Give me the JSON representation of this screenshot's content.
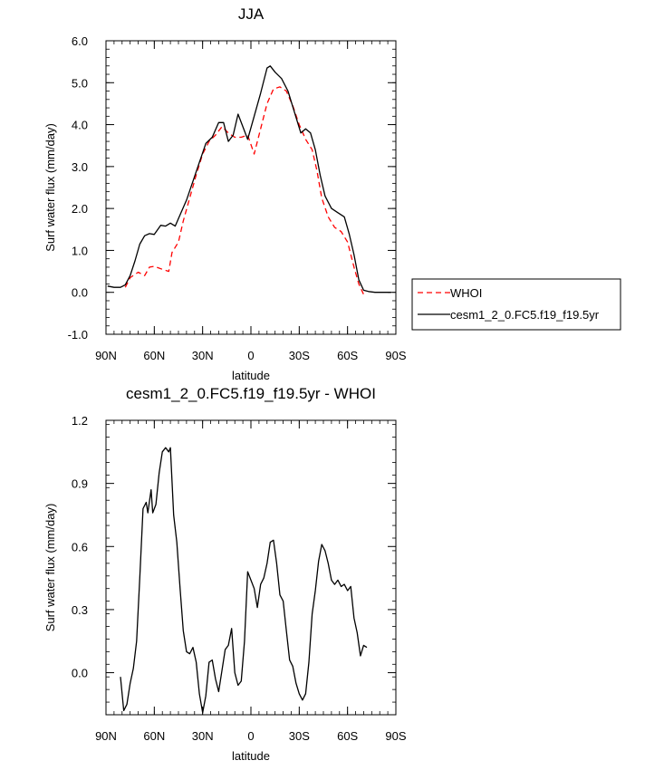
{
  "chart_data": [
    {
      "type": "line",
      "title": "JJA",
      "xlabel": "latitude",
      "ylabel": "Surf water flux (mm/day)",
      "xlim": [
        -90,
        90
      ],
      "ylim": [
        -1.0,
        6.0
      ],
      "xticks": [
        -90,
        -60,
        -30,
        0,
        30,
        60,
        90
      ],
      "xtick_labels": [
        "90N",
        "60N",
        "30N",
        "0",
        "30S",
        "60S",
        "90S"
      ],
      "yticks": [
        -1,
        0,
        1,
        2,
        3,
        4,
        5,
        6
      ],
      "ytick_labels": [
        "-1.0",
        "0.0",
        "1.0",
        "2.0",
        "3.0",
        "4.0",
        "5.0",
        "6.0"
      ],
      "legend": "outside-right",
      "series": [
        {
          "name": "WHOI",
          "color": "#ff0000",
          "dash": "dashed",
          "points": [
            [
              -78,
              0.12
            ],
            [
              -75,
              0.35
            ],
            [
              -70,
              0.48
            ],
            [
              -66,
              0.4
            ],
            [
              -63,
              0.6
            ],
            [
              -60,
              0.62
            ],
            [
              -55,
              0.55
            ],
            [
              -51,
              0.5
            ],
            [
              -49,
              0.95
            ],
            [
              -45,
              1.2
            ],
            [
              -42,
              1.7
            ],
            [
              -38,
              2.25
            ],
            [
              -34,
              2.8
            ],
            [
              -30,
              3.3
            ],
            [
              -26,
              3.6
            ],
            [
              -22,
              3.75
            ],
            [
              -18,
              3.95
            ],
            [
              -14,
              3.8
            ],
            [
              -10,
              3.7
            ],
            [
              -6,
              3.7
            ],
            [
              -2,
              3.75
            ],
            [
              2,
              3.3
            ],
            [
              6,
              3.9
            ],
            [
              10,
              4.5
            ],
            [
              14,
              4.85
            ],
            [
              18,
              4.9
            ],
            [
              22,
              4.8
            ],
            [
              26,
              4.45
            ],
            [
              30,
              4.0
            ],
            [
              34,
              3.65
            ],
            [
              38,
              3.4
            ],
            [
              41,
              2.9
            ],
            [
              44,
              2.25
            ],
            [
              48,
              1.8
            ],
            [
              52,
              1.55
            ],
            [
              56,
              1.45
            ],
            [
              60,
              1.2
            ],
            [
              64,
              0.6
            ],
            [
              67,
              0.2
            ],
            [
              70,
              -0.05
            ]
          ]
        },
        {
          "name": "cesm1_2_0.FC5.f19_f19.5yr",
          "color": "#000000",
          "dash": "solid",
          "points": [
            [
              -89,
              0.15
            ],
            [
              -85,
              0.12
            ],
            [
              -81,
              0.12
            ],
            [
              -78,
              0.18
            ],
            [
              -75,
              0.4
            ],
            [
              -72,
              0.75
            ],
            [
              -69,
              1.15
            ],
            [
              -66,
              1.35
            ],
            [
              -63,
              1.4
            ],
            [
              -60,
              1.38
            ],
            [
              -56,
              1.6
            ],
            [
              -53,
              1.58
            ],
            [
              -50,
              1.65
            ],
            [
              -47,
              1.58
            ],
            [
              -44,
              1.85
            ],
            [
              -40,
              2.2
            ],
            [
              -36,
              2.65
            ],
            [
              -32,
              3.1
            ],
            [
              -28,
              3.55
            ],
            [
              -24,
              3.7
            ],
            [
              -20,
              4.05
            ],
            [
              -17,
              4.05
            ],
            [
              -14,
              3.6
            ],
            [
              -11,
              3.75
            ],
            [
              -8,
              4.25
            ],
            [
              -5,
              3.95
            ],
            [
              -2,
              3.65
            ],
            [
              2,
              4.2
            ],
            [
              6,
              4.75
            ],
            [
              10,
              5.35
            ],
            [
              12,
              5.4
            ],
            [
              15,
              5.25
            ],
            [
              19,
              5.1
            ],
            [
              23,
              4.8
            ],
            [
              27,
              4.3
            ],
            [
              31,
              3.8
            ],
            [
              34,
              3.9
            ],
            [
              37,
              3.8
            ],
            [
              40,
              3.4
            ],
            [
              43,
              2.8
            ],
            [
              46,
              2.3
            ],
            [
              50,
              2.0
            ],
            [
              54,
              1.9
            ],
            [
              58,
              1.8
            ],
            [
              61,
              1.4
            ],
            [
              64,
              0.9
            ],
            [
              67,
              0.3
            ],
            [
              70,
              0.05
            ],
            [
              73,
              0.02
            ],
            [
              77,
              0.0
            ],
            [
              83,
              0.0
            ],
            [
              87,
              0.0
            ]
          ]
        }
      ]
    },
    {
      "type": "line",
      "title": "cesm1_2_0.FC5.f19_f19.5yr - WHOI",
      "xlabel": "latitude",
      "ylabel": "Surf water flux (mm/day)",
      "xlim": [
        -90,
        90
      ],
      "ylim": [
        -0.2,
        1.2
      ],
      "xticks": [
        -90,
        -60,
        -30,
        0,
        30,
        60,
        90
      ],
      "xtick_labels": [
        "90N",
        "60N",
        "30N",
        "0",
        "30S",
        "60S",
        "90S"
      ],
      "yticks": [
        0,
        0.3,
        0.6,
        0.9,
        1.2
      ],
      "ytick_labels": [
        "0.0",
        "0.3",
        "0.6",
        "0.9",
        "1.2"
      ],
      "series": [
        {
          "color": "#000000",
          "dash": "solid",
          "points": [
            [
              -81,
              -0.02
            ],
            [
              -79,
              -0.18
            ],
            [
              -77,
              -0.15
            ],
            [
              -75,
              -0.05
            ],
            [
              -73,
              0.02
            ],
            [
              -71,
              0.15
            ],
            [
              -69,
              0.45
            ],
            [
              -67,
              0.78
            ],
            [
              -65,
              0.81
            ],
            [
              -64,
              0.76
            ],
            [
              -62,
              0.87
            ],
            [
              -61,
              0.76
            ],
            [
              -59,
              0.8
            ],
            [
              -57,
              0.95
            ],
            [
              -55,
              1.05
            ],
            [
              -53,
              1.07
            ],
            [
              -51,
              1.05
            ],
            [
              -50,
              1.07
            ],
            [
              -48,
              0.75
            ],
            [
              -46,
              0.62
            ],
            [
              -44,
              0.4
            ],
            [
              -42,
              0.2
            ],
            [
              -40,
              0.1
            ],
            [
              -38,
              0.09
            ],
            [
              -36,
              0.12
            ],
            [
              -34,
              0.05
            ],
            [
              -32,
              -0.1
            ],
            [
              -30,
              -0.19
            ],
            [
              -28,
              -0.11
            ],
            [
              -26,
              0.05
            ],
            [
              -24,
              0.06
            ],
            [
              -22,
              -0.03
            ],
            [
              -20,
              -0.09
            ],
            [
              -18,
              0.01
            ],
            [
              -16,
              0.11
            ],
            [
              -14,
              0.13
            ],
            [
              -12,
              0.21
            ],
            [
              -10,
              0.0
            ],
            [
              -8,
              -0.06
            ],
            [
              -6,
              -0.04
            ],
            [
              -4,
              0.15
            ],
            [
              -2,
              0.48
            ],
            [
              0,
              0.44
            ],
            [
              2,
              0.4
            ],
            [
              4,
              0.31
            ],
            [
              6,
              0.42
            ],
            [
              8,
              0.45
            ],
            [
              10,
              0.52
            ],
            [
              12,
              0.62
            ],
            [
              14,
              0.63
            ],
            [
              16,
              0.52
            ],
            [
              18,
              0.37
            ],
            [
              20,
              0.34
            ],
            [
              22,
              0.2
            ],
            [
              24,
              0.06
            ],
            [
              26,
              0.03
            ],
            [
              28,
              -0.05
            ],
            [
              30,
              -0.1
            ],
            [
              32,
              -0.13
            ],
            [
              34,
              -0.1
            ],
            [
              36,
              0.05
            ],
            [
              38,
              0.28
            ],
            [
              40,
              0.39
            ],
            [
              42,
              0.53
            ],
            [
              44,
              0.61
            ],
            [
              46,
              0.58
            ],
            [
              48,
              0.52
            ],
            [
              50,
              0.44
            ],
            [
              52,
              0.42
            ],
            [
              54,
              0.44
            ],
            [
              56,
              0.41
            ],
            [
              58,
              0.42
            ],
            [
              60,
              0.39
            ],
            [
              62,
              0.41
            ],
            [
              64,
              0.26
            ],
            [
              66,
              0.19
            ],
            [
              68,
              0.08
            ],
            [
              70,
              0.13
            ],
            [
              72,
              0.12
            ]
          ]
        }
      ]
    }
  ]
}
